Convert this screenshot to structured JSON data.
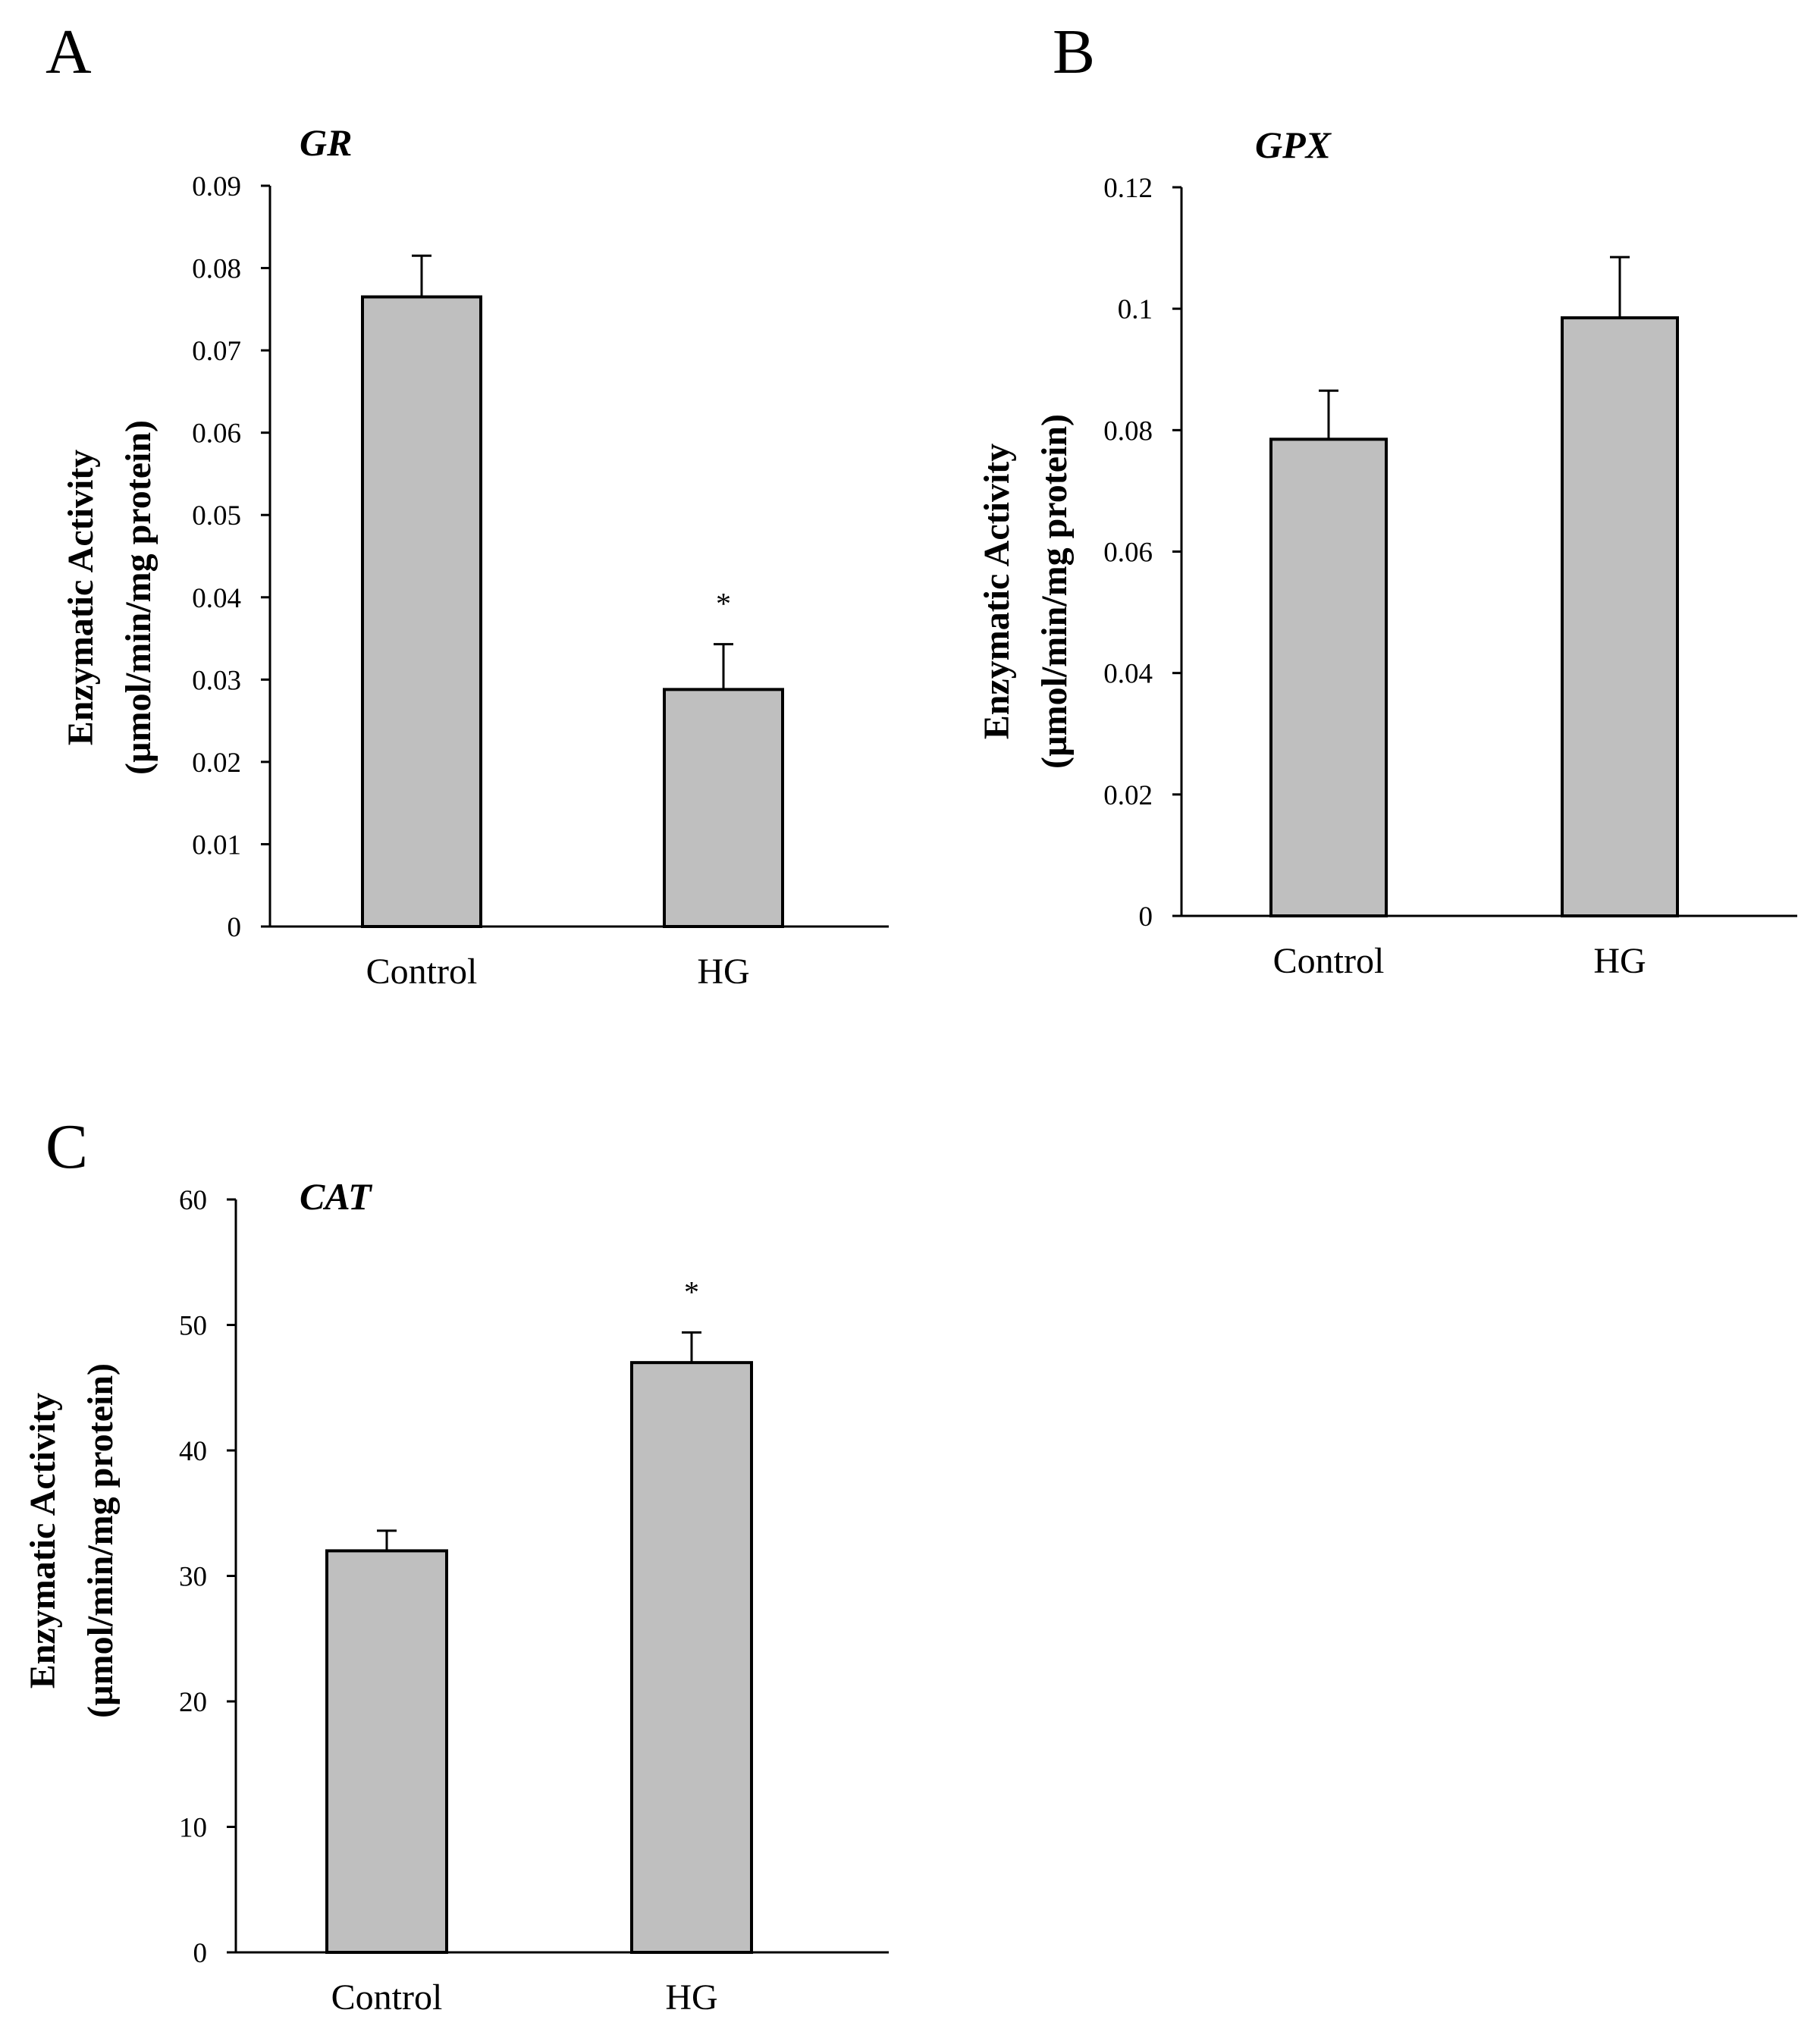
{
  "chart_data": [
    {
      "type": "bar",
      "panel": "A",
      "title": "GR",
      "ylabel": [
        "Enzymatic Activity",
        "(µmol/min/mg protein)"
      ],
      "xlabel": "",
      "categories": [
        "Control",
        "HG"
      ],
      "values": [
        0.0765,
        0.0288
      ],
      "errors": [
        0.005,
        0.0055
      ],
      "significance": [
        "",
        "*"
      ],
      "ylim": [
        0,
        0.09
      ],
      "yticks": [
        "0",
        "0.01",
        "0.02",
        "0.03",
        "0.04",
        "0.05",
        "0.06",
        "0.07",
        "0.08",
        "0.09"
      ],
      "bar_color": "#bfbfbf"
    },
    {
      "type": "bar",
      "panel": "B",
      "title": "GPX",
      "ylabel": [
        "Enzymatic Activity",
        "(µmol/min/mg protein)"
      ],
      "xlabel": "",
      "categories": [
        "Control",
        "HG"
      ],
      "values": [
        0.0785,
        0.0985
      ],
      "errors": [
        0.008,
        0.01
      ],
      "significance": [
        "",
        ""
      ],
      "ylim": [
        0,
        0.12
      ],
      "yticks": [
        "0",
        "0.02",
        "0.04",
        "0.06",
        "0.08",
        "0.1",
        "0.12"
      ],
      "bar_color": "#bfbfbf"
    },
    {
      "type": "bar",
      "panel": "C",
      "title": "CAT",
      "ylabel": [
        "Enzymatic Activity",
        "(µmol/min/mg protein)"
      ],
      "xlabel": "",
      "categories": [
        "Control",
        "HG"
      ],
      "values": [
        32,
        47
      ],
      "errors": [
        1.6,
        2.4
      ],
      "significance": [
        "",
        "*"
      ],
      "ylim": [
        0,
        60
      ],
      "yticks": [
        "0",
        "10",
        "20",
        "30",
        "40",
        "50",
        "60"
      ],
      "bar_color": "#bfbfbf"
    }
  ]
}
